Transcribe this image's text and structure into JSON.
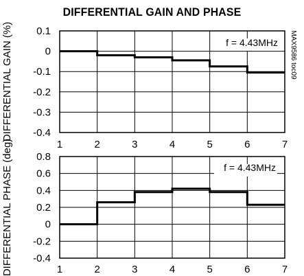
{
  "title": "DIFFERENTIAL GAIN AND PHASE",
  "part_code": "MAX9586 toc09",
  "chart_data": [
    {
      "type": "line",
      "title": "",
      "xlabel": "",
      "ylabel": "DIFFERENTIAL GAIN (%)",
      "annotation": "f = 4.43MHz",
      "x_ticks": [
        "1",
        "2",
        "3",
        "4",
        "5",
        "6",
        "7"
      ],
      "y_ticks": [
        "0.1",
        "0",
        "-0.1",
        "-0.2",
        "-0.3",
        "-0.4"
      ],
      "xlim": [
        1,
        7
      ],
      "ylim": [
        -0.4,
        0.1
      ],
      "grid": true,
      "steps": [
        {
          "x0": 1,
          "x1": 2,
          "y": 0.0
        },
        {
          "x0": 2,
          "x1": 3,
          "y": -0.02
        },
        {
          "x0": 3,
          "x1": 4,
          "y": -0.03
        },
        {
          "x0": 4,
          "x1": 5,
          "y": -0.045
        },
        {
          "x0": 5,
          "x1": 6,
          "y": -0.075
        },
        {
          "x0": 6,
          "x1": 7,
          "y": -0.105
        }
      ]
    },
    {
      "type": "line",
      "title": "",
      "xlabel": "",
      "ylabel": "DIFFERENTIAL PHASE (deg)",
      "annotation": "f = 4.43MHz",
      "x_ticks": [
        "1",
        "2",
        "3",
        "4",
        "5",
        "6",
        "7"
      ],
      "y_ticks": [
        "0.8",
        "0.6",
        "0.4",
        "0.2",
        "0",
        "-0.2",
        "-0.4"
      ],
      "xlim": [
        1,
        7
      ],
      "ylim": [
        -0.4,
        0.8
      ],
      "grid": true,
      "steps": [
        {
          "x0": 1,
          "x1": 2,
          "y": 0.0
        },
        {
          "x0": 2,
          "x1": 3,
          "y": 0.26
        },
        {
          "x0": 3,
          "x1": 4,
          "y": 0.38
        },
        {
          "x0": 4,
          "x1": 5,
          "y": 0.42
        },
        {
          "x0": 5,
          "x1": 6,
          "y": 0.38
        },
        {
          "x0": 6,
          "x1": 7,
          "y": 0.23
        }
      ]
    }
  ]
}
